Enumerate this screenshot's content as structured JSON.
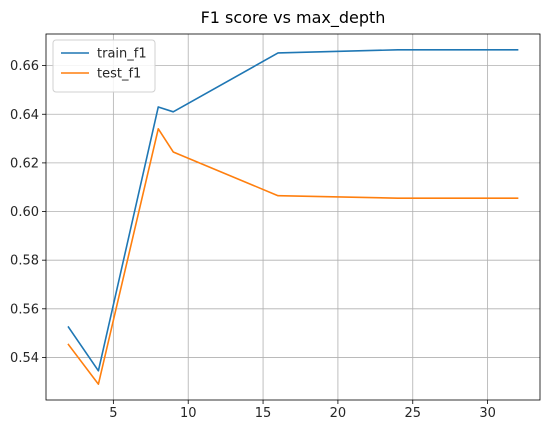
{
  "chart_data": {
    "type": "line",
    "title": "F1 score vs max_depth",
    "xlabel": "",
    "ylabel": "",
    "xlim": [
      0.5,
      33.5
    ],
    "ylim": [
      0.5225,
      0.673
    ],
    "x_ticks": [
      5,
      10,
      15,
      20,
      25,
      30
    ],
    "y_ticks": [
      0.54,
      0.56,
      0.58,
      0.6,
      0.62,
      0.64,
      0.66
    ],
    "grid": true,
    "legend_position": "top-left",
    "series": [
      {
        "name": "train_f1",
        "color": "#1f77b4",
        "x": [
          2,
          4,
          8,
          9,
          16,
          24,
          32
        ],
        "y": [
          0.5525,
          0.5345,
          0.643,
          0.641,
          0.6652,
          0.6665,
          0.6665
        ]
      },
      {
        "name": "test_f1",
        "color": "#ff7f0e",
        "x": [
          2,
          4,
          8,
          9,
          16,
          24,
          32
        ],
        "y": [
          0.5453,
          0.529,
          0.634,
          0.6245,
          0.6065,
          0.6055,
          0.6055
        ]
      }
    ]
  }
}
